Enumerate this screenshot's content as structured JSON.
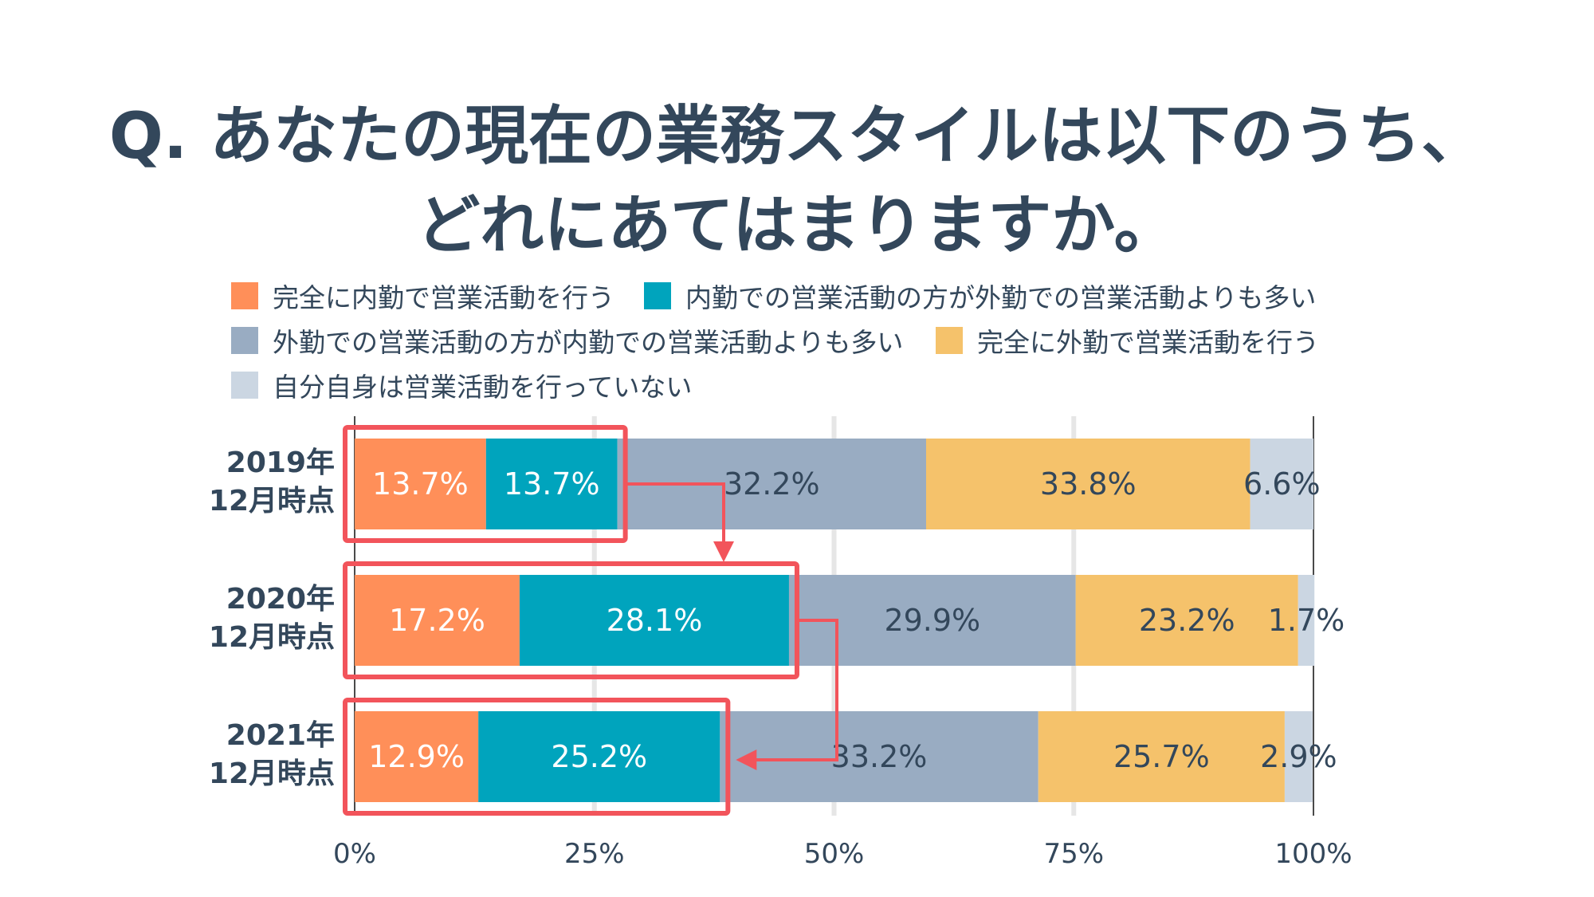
{
  "title": {
    "line1": "Q. あなたの現在の業務スタイルは以下のうち、",
    "line2": "どれにあてはまりますか。"
  },
  "legend": [
    {
      "label": "完全に内勤で営業活動を行う",
      "color": "#ff8f59"
    },
    {
      "label": "内勤での営業活動の方が外勤での営業活動よりも多い",
      "color": "#00a4bd"
    },
    {
      "label": "外勤での営業活動の方が内勤での営業活動よりも多い",
      "color": "#99acc2"
    },
    {
      "label": "完全に外勤で営業活動を行う",
      "color": "#f5c26b"
    },
    {
      "label": "自分自身は営業活動を行っていない",
      "color": "#cbd6e2"
    }
  ],
  "chart_data": {
    "type": "bar",
    "orientation": "horizontal",
    "stacked": true,
    "categories": [
      "2019年\n12月時点",
      "2020年\n12月時点",
      "2021年\n12月時点"
    ],
    "series": [
      {
        "name": "完全に内勤で営業活動を行う",
        "values": [
          13.7,
          17.2,
          12.9
        ],
        "color": "#ff8f59",
        "label_color": "#ffffff"
      },
      {
        "name": "内勤での営業活動の方が外勤での営業活動よりも多い",
        "values": [
          13.7,
          28.1,
          25.2
        ],
        "color": "#00a4bd",
        "label_color": "#ffffff"
      },
      {
        "name": "外勤での営業活動の方が内勤での営業活動よりも多い",
        "values": [
          32.2,
          29.9,
          33.2
        ],
        "color": "#99acc2",
        "label_color": "#33475b"
      },
      {
        "name": "完全に外勤で営業活動を行う",
        "values": [
          33.8,
          23.2,
          25.7
        ],
        "color": "#f5c26b",
        "label_color": "#33475b"
      },
      {
        "name": "自分自身は営業活動を行っていない",
        "values": [
          6.6,
          1.7,
          2.9
        ],
        "color": "#cbd6e2",
        "label_color": "#33475b"
      }
    ],
    "value_suffix": "%",
    "xlim": [
      0,
      100
    ],
    "xticks": [
      0,
      25,
      50,
      75,
      100
    ],
    "xtick_labels": [
      "0%",
      "25%",
      "50%",
      "75%",
      "100%"
    ],
    "grid": true,
    "legend_position": "top",
    "highlight": {
      "series_indices": [
        0,
        1
      ],
      "box_color": "#f2545b",
      "arrows": true
    }
  }
}
